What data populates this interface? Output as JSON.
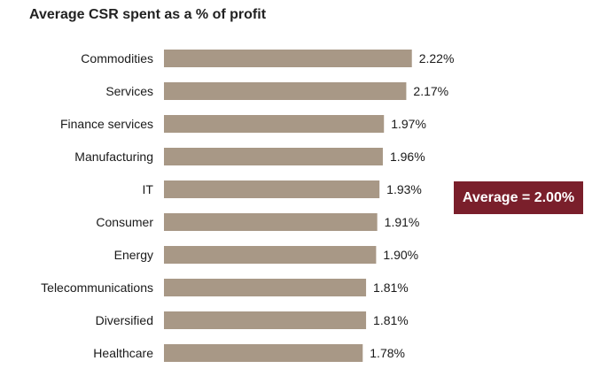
{
  "chart_data": {
    "type": "bar",
    "orientation": "horizontal",
    "title": "Average CSR spent as a % of profit",
    "categories": [
      "Commodities",
      "Services",
      "Finance services",
      "Manufacturing",
      "IT",
      "Consumer",
      "Energy",
      "Telecommunications",
      "Diversified",
      "Healthcare"
    ],
    "values": [
      2.22,
      2.17,
      1.97,
      1.96,
      1.93,
      1.91,
      1.9,
      1.81,
      1.81,
      1.78
    ],
    "value_labels": [
      "2.22%",
      "2.17%",
      "1.97%",
      "1.96%",
      "1.93%",
      "1.91%",
      "1.90%",
      "1.81%",
      "1.81%",
      "1.78%"
    ],
    "xlabel": "",
    "ylabel": "",
    "grid": false,
    "bar_color": "#a89886",
    "annotation": {
      "text": "Average = 2.00%",
      "color": "#7a1f2b"
    }
  }
}
